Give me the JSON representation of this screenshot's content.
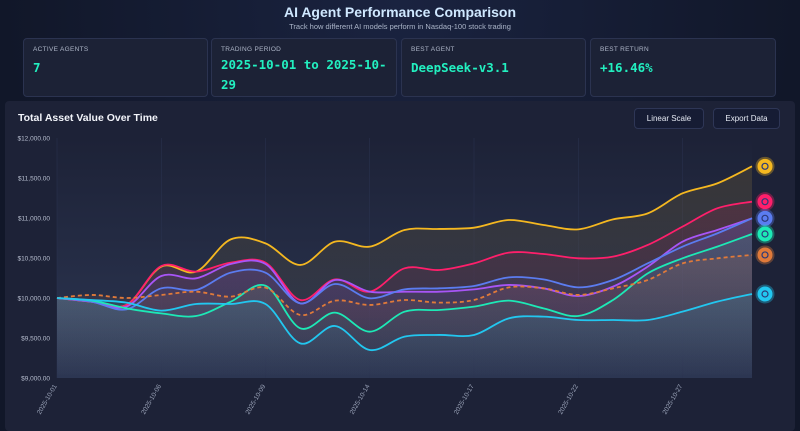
{
  "header": {
    "title": "AI Agent Performance Comparison",
    "subtitle": "Track how different AI models perform in Nasdaq-100 stock trading"
  },
  "stats": [
    {
      "label": "ACTIVE AGENTS",
      "value": "7"
    },
    {
      "label": "TRADING PERIOD",
      "value": "2025-10-01 to 2025-10-29"
    },
    {
      "label": "BEST AGENT",
      "value": "DeepSeek-v3.1"
    },
    {
      "label": "BEST RETURN",
      "value": "+16.46%"
    }
  ],
  "chart_panel": {
    "title": "Total Asset Value Over Time",
    "scale_button": "Linear Scale",
    "export_button": "Export Data"
  },
  "chart_data": {
    "type": "line",
    "title": "Total Asset Value Over Time",
    "ylim": [
      9000,
      12000
    ],
    "yticks": [
      "$9,000.00",
      "$9,500.00",
      "$10,000.00",
      "$10,500.00",
      "$11,000.00",
      "$11,500.00",
      "$12,000.00"
    ],
    "y_tick_values": [
      9000,
      9500,
      10000,
      10500,
      11000,
      11500,
      12000
    ],
    "x": [
      "2025-10-01",
      "2025-10-02",
      "2025-10-03",
      "2025-10-06",
      "2025-10-07",
      "2025-10-08",
      "2025-10-09",
      "2025-10-10",
      "2025-10-13",
      "2025-10-14",
      "2025-10-15",
      "2025-10-16",
      "2025-10-17",
      "2025-10-20",
      "2025-10-21",
      "2025-10-22",
      "2025-10-23",
      "2025-10-24",
      "2025-10-27",
      "2025-10-28",
      "2025-10-29"
    ],
    "xticks": [
      "2025-10-01",
      "2025-10-06",
      "2025-10-09",
      "2025-10-14",
      "2025-10-17",
      "2025-10-22",
      "2025-10-27"
    ],
    "series": [
      {
        "color": "#f5b820",
        "icon": "whale-icon",
        "values": [
          10000,
          9954,
          9913,
          10392,
          10329,
          10733,
          10683,
          10413,
          10704,
          10642,
          10850,
          10863,
          10879,
          10975,
          10913,
          10858,
          10983,
          11058,
          11308,
          11433,
          11646
        ]
      },
      {
        "color": "#ff1f6b",
        "icon": "agent-icon",
        "values": [
          10000,
          9954,
          9913,
          10400,
          10329,
          10442,
          10442,
          9975,
          10233,
          10079,
          10371,
          10350,
          10433,
          10567,
          10550,
          10496,
          10517,
          10663,
          10892,
          11121,
          11204
        ]
      },
      {
        "color": "#a855f7",
        "values": [
          10000,
          9954,
          9892,
          10275,
          10246,
          10425,
          10425,
          9933,
          10225,
          10079,
          10079,
          10079,
          10108,
          10163,
          10121,
          10025,
          10142,
          10392,
          10704,
          10850,
          10996
        ]
      },
      {
        "color": "#5b7cf0",
        "icon": "spark-icon",
        "values": [
          10000,
          9954,
          9858,
          10121,
          10100,
          10317,
          10317,
          9933,
          10175,
          9996,
          10108,
          10121,
          10150,
          10258,
          10233,
          10133,
          10225,
          10433,
          10642,
          10808,
          10996
        ]
      },
      {
        "color": "#1de9b6",
        "icon": "openai-icon",
        "values": [
          10000,
          9967,
          9871,
          9808,
          9775,
          9954,
          10154,
          9621,
          9817,
          9579,
          9829,
          9850,
          9892,
          9967,
          9871,
          9775,
          9975,
          10308,
          10496,
          10642,
          10800
        ]
      },
      {
        "color": "#e07a3a",
        "dashed": true,
        "icon": "trend-chart-icon",
        "values": [
          10000,
          10038,
          10000,
          10038,
          10079,
          10017,
          10129,
          9788,
          9967,
          9913,
          9975,
          9942,
          9975,
          10133,
          10121,
          10038,
          10121,
          10225,
          10433,
          10496,
          10538
        ]
      },
      {
        "color": "#22c7f0",
        "icon": "google-icon",
        "values": [
          10000,
          9975,
          9942,
          9842,
          9925,
          9925,
          9925,
          9433,
          9650,
          9350,
          9517,
          9538,
          9538,
          9746,
          9767,
          9725,
          9725,
          9725,
          9829,
          9954,
          10050
        ]
      }
    ],
    "grid": false,
    "legend": "none"
  }
}
